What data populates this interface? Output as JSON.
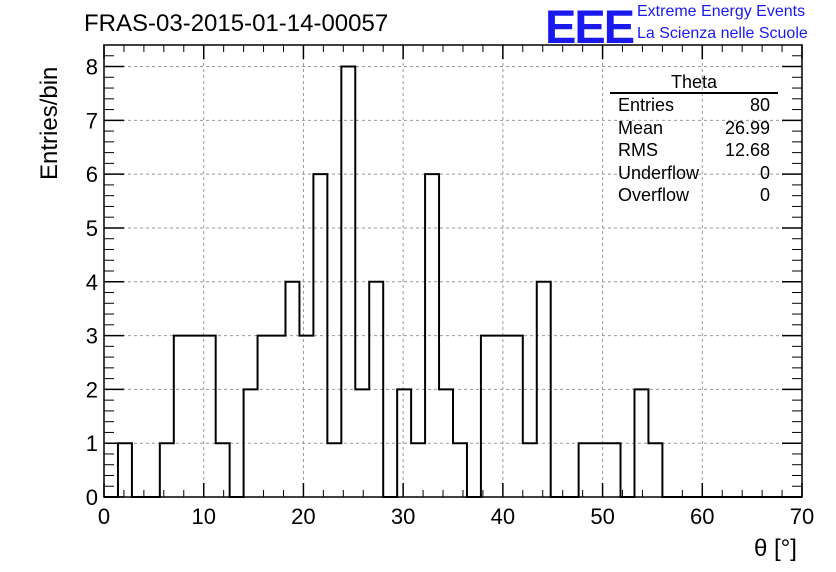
{
  "header": {
    "title": "FRAS-03-2015-01-14-00057",
    "logo_text": "EEE",
    "logo_line1": "Extreme Energy Events",
    "logo_line2": "La Scienza nelle Scuole"
  },
  "stats_box": {
    "title": "Theta",
    "rows": [
      {
        "key": "Entries",
        "value": "80"
      },
      {
        "key": "Mean",
        "value": "26.99"
      },
      {
        "key": "RMS",
        "value": "12.68"
      },
      {
        "key": "Underflow",
        "value": "0"
      },
      {
        "key": "Overflow",
        "value": "0"
      }
    ]
  },
  "chart_data": {
    "type": "bar",
    "histogram": true,
    "title": "FRAS-03-2015-01-14-00057",
    "xlabel": "θ [°]",
    "ylabel": "Entries/bin",
    "xlim": [
      0,
      70
    ],
    "ylim": [
      0,
      8.4
    ],
    "grid": true,
    "x_ticks": [
      0,
      10,
      20,
      30,
      40,
      50,
      60,
      70
    ],
    "y_ticks": [
      0,
      1,
      2,
      3,
      4,
      5,
      6,
      7,
      8
    ],
    "bin_width": 1.4,
    "bin_edges_start": 0,
    "values": [
      0,
      1,
      0,
      0,
      1,
      3,
      3,
      3,
      1,
      0,
      2,
      3,
      3,
      4,
      3,
      6,
      1,
      8,
      2,
      4,
      0,
      2,
      1,
      6,
      2,
      1,
      0,
      3,
      3,
      3,
      1,
      4,
      0,
      0,
      1,
      1,
      1,
      0,
      2,
      1,
      0,
      0,
      0,
      0,
      0,
      0,
      0,
      0,
      0,
      0
    ]
  },
  "colors": {
    "line": "#000000",
    "grid": "#999999",
    "logo": "#1a1aee"
  }
}
